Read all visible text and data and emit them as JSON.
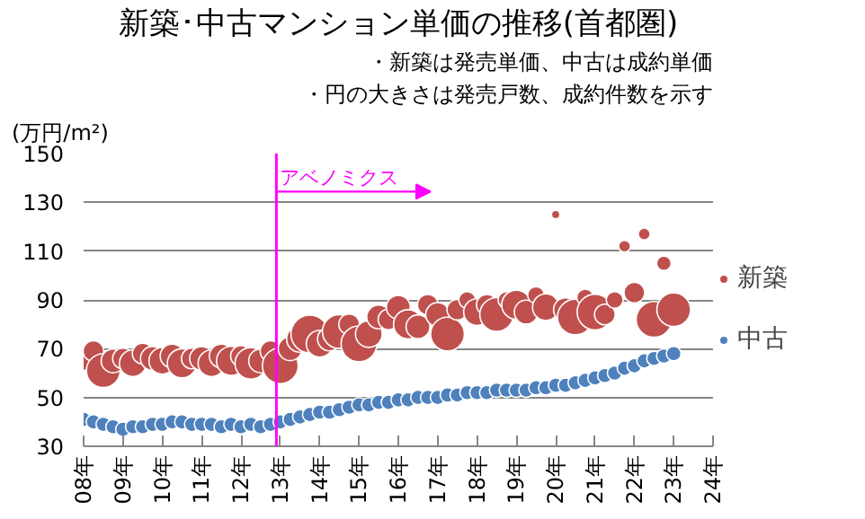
{
  "chart_data": {
    "type": "bubble",
    "title": "新築･中古マンション単価の推移(首都圏)",
    "ylabel": "(万円/m²)",
    "annotations": [
      "・新築は発売単価、中古は成約単価",
      "・円の大きさは発売戸数、成約件数を示す"
    ],
    "x": [
      8,
      8.25,
      8.5,
      8.75,
      9,
      9.25,
      9.5,
      9.75,
      10,
      10.25,
      10.5,
      10.75,
      11,
      11.25,
      11.5,
      11.75,
      12,
      12.25,
      12.5,
      12.75,
      13,
      13.25,
      13.5,
      13.75,
      14,
      14.25,
      14.5,
      14.75,
      15,
      15.25,
      15.5,
      15.75,
      16,
      16.25,
      16.5,
      16.75,
      17,
      17.25,
      17.5,
      17.75,
      18,
      18.25,
      18.5,
      18.75,
      19,
      19.25,
      19.5,
      19.75,
      20,
      20.25,
      20.5,
      20.75,
      21,
      21.25,
      21.5,
      21.75,
      22,
      22.25,
      22.5,
      22.75,
      23
    ],
    "series": [
      {
        "name": "新築",
        "color": "#c0504d",
        "values": [
          66,
          69,
          61,
          65,
          66,
          64,
          68,
          66,
          65,
          67,
          64,
          66,
          66,
          64,
          67,
          65,
          67,
          64,
          65,
          69,
          63,
          70,
          74,
          76,
          72,
          74,
          77,
          80,
          72,
          76,
          83,
          82,
          87,
          80,
          79,
          88,
          84,
          76,
          86,
          90,
          85,
          88,
          84,
          90,
          88,
          85,
          92,
          87,
          125,
          86,
          83,
          91,
          85,
          84,
          90,
          112,
          93,
          117,
          82,
          105,
          86
        ],
        "sizes": [
          0.4,
          0.3,
          0.8,
          0.4,
          0.3,
          0.5,
          0.3,
          0.4,
          0.5,
          0.4,
          0.6,
          0.3,
          0.4,
          0.5,
          0.4,
          0.6,
          0.3,
          0.7,
          0.4,
          0.3,
          0.9,
          0.4,
          0.5,
          1.0,
          0.5,
          0.4,
          0.8,
          0.3,
          0.9,
          0.5,
          0.4,
          0.3,
          0.4,
          0.6,
          0.4,
          0.3,
          0.4,
          0.8,
          0.3,
          0.2,
          0.5,
          0.3,
          0.8,
          0.2,
          0.6,
          0.4,
          0.2,
          0.5,
          0.05,
          0.4,
          0.9,
          0.2,
          0.9,
          0.3,
          0.2,
          0.1,
          0.3,
          0.1,
          0.9,
          0.15,
          0.8
        ]
      },
      {
        "name": "中古",
        "color": "#4f81bd",
        "values": [
          41,
          40,
          39,
          38,
          37,
          38,
          38,
          39,
          39,
          40,
          40,
          39,
          39,
          39,
          38,
          39,
          38,
          39,
          38,
          39,
          40,
          41,
          42,
          43,
          44,
          44,
          45,
          46,
          47,
          47,
          48,
          48,
          49,
          49,
          50,
          50,
          50,
          51,
          51,
          52,
          52,
          52,
          53,
          53,
          53,
          53,
          54,
          54,
          55,
          55,
          56,
          57,
          58,
          59,
          60,
          62,
          63,
          65,
          66,
          67,
          68
        ],
        "sizes": [
          0.15,
          0.15,
          0.15,
          0.15,
          0.15,
          0.15,
          0.15,
          0.15,
          0.15,
          0.15,
          0.15,
          0.15,
          0.15,
          0.15,
          0.15,
          0.15,
          0.15,
          0.15,
          0.15,
          0.15,
          0.15,
          0.15,
          0.15,
          0.15,
          0.15,
          0.15,
          0.15,
          0.15,
          0.15,
          0.15,
          0.15,
          0.15,
          0.15,
          0.15,
          0.15,
          0.15,
          0.15,
          0.15,
          0.15,
          0.15,
          0.15,
          0.15,
          0.15,
          0.15,
          0.15,
          0.15,
          0.15,
          0.15,
          0.15,
          0.15,
          0.15,
          0.15,
          0.15,
          0.15,
          0.15,
          0.15,
          0.15,
          0.15,
          0.15,
          0.15,
          0.15
        ]
      }
    ],
    "xlim": [
      8,
      24
    ],
    "xticks": [
      {
        "value": 8,
        "label": "08年"
      },
      {
        "value": 9,
        "label": "09年"
      },
      {
        "value": 10,
        "label": "10年"
      },
      {
        "value": 11,
        "label": "11年"
      },
      {
        "value": 12,
        "label": "12年"
      },
      {
        "value": 13,
        "label": "13年"
      },
      {
        "value": 14,
        "label": "14年"
      },
      {
        "value": 15,
        "label": "15年"
      },
      {
        "value": 16,
        "label": "16年"
      },
      {
        "value": 17,
        "label": "17年"
      },
      {
        "value": 18,
        "label": "18年"
      },
      {
        "value": 19,
        "label": "19年"
      },
      {
        "value": 20,
        "label": "20年"
      },
      {
        "value": 21,
        "label": "21年"
      },
      {
        "value": 22,
        "label": "22年"
      },
      {
        "value": 23,
        "label": "23年"
      },
      {
        "value": 24,
        "label": "24年"
      }
    ],
    "ylim": [
      30,
      150
    ],
    "yticks": [
      30,
      50,
      70,
      90,
      110,
      130,
      150
    ],
    "ref_lines": [
      {
        "axis": "x",
        "value": 12.9,
        "label": "アベノミクス",
        "color": "#ff00ff"
      }
    ],
    "grid": "y",
    "legend": "right"
  }
}
